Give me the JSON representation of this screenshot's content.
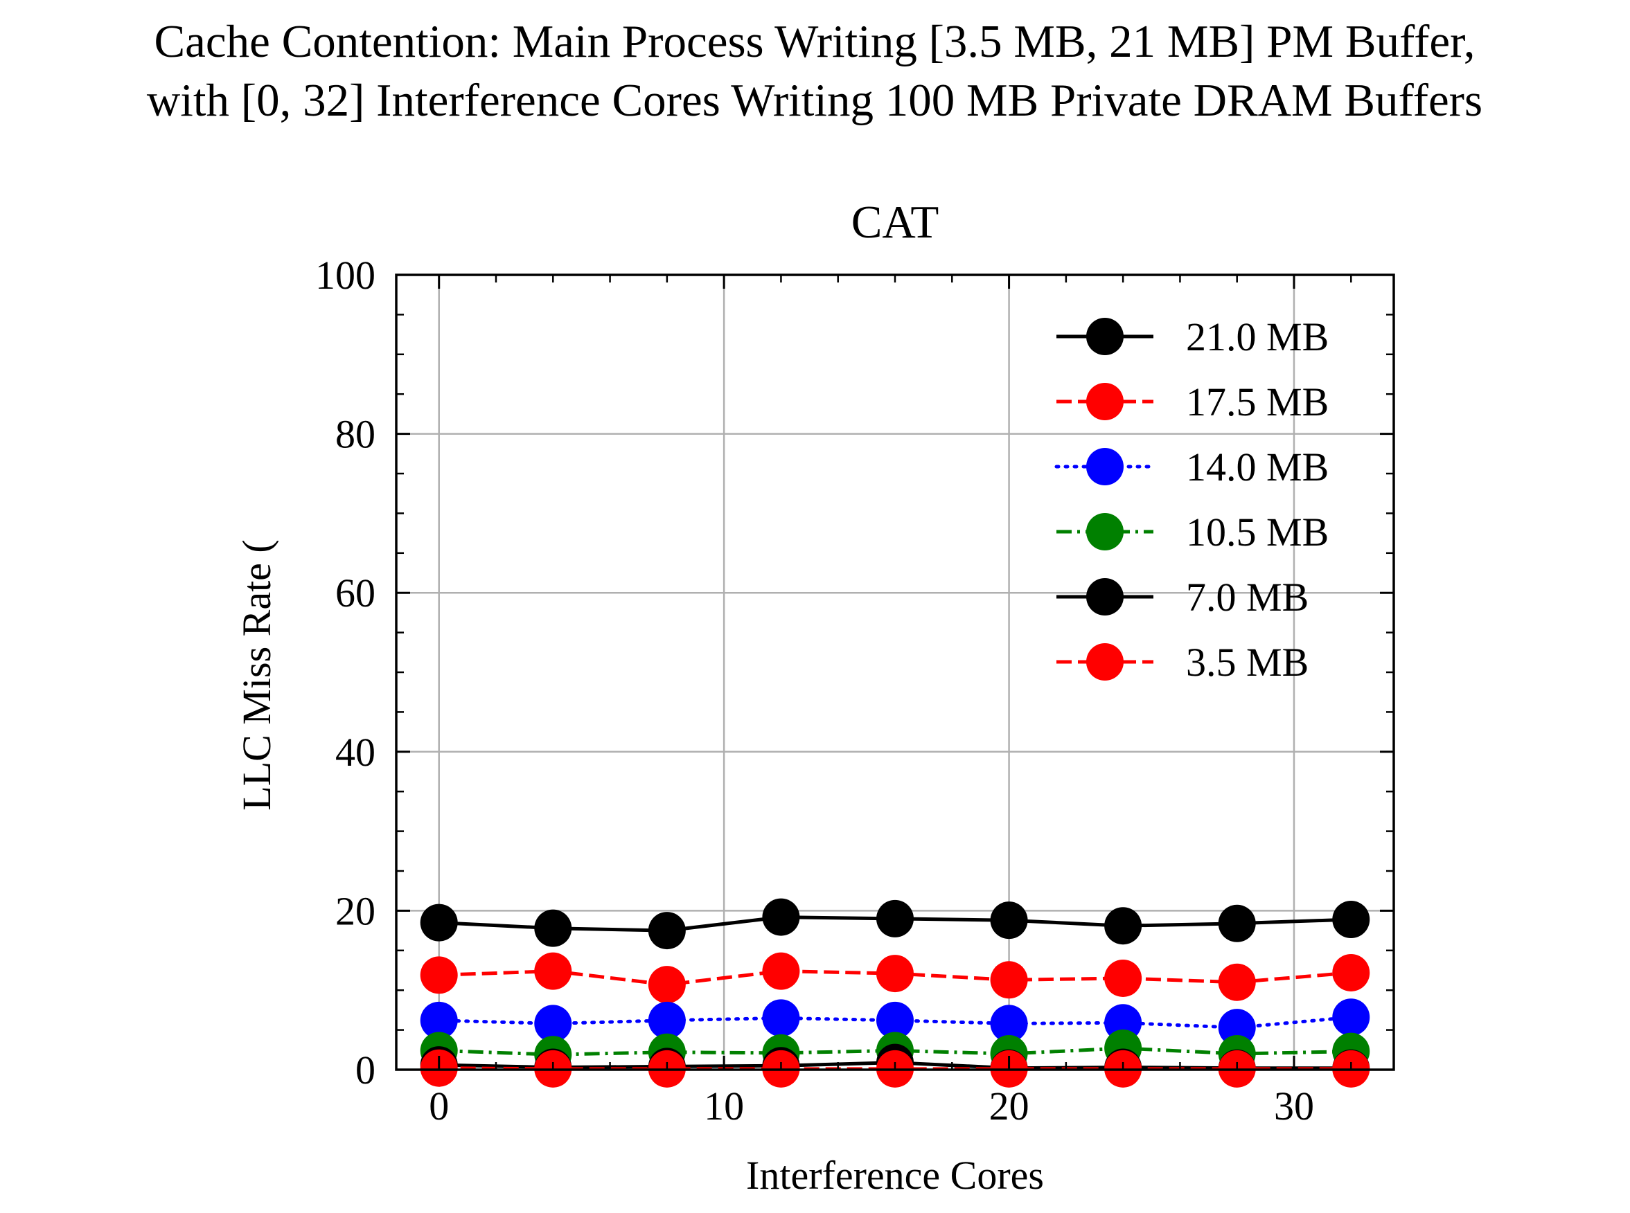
{
  "chart_data": {
    "type": "line",
    "title": "Cache Contention: Main Process Writing [3.5 MB, 21 MB] PM Buffer,",
    "title_line2": "with [0, 32] Interference Cores Writing 100 MB Private DRAM Buffers",
    "subtitle": "CAT",
    "xlabel": "Interference Cores",
    "ylabel": "LLC Miss Rate (",
    "xlim": [
      -1.5,
      33.5
    ],
    "ylim": [
      0,
      100
    ],
    "x_ticks": [
      0,
      10,
      20,
      30
    ],
    "x_tick_labels": [
      "0",
      "10",
      "20",
      "30"
    ],
    "y_ticks": [
      0,
      20,
      40,
      60,
      80,
      100
    ],
    "y_tick_labels": [
      "0",
      "20",
      "40",
      "60",
      "80",
      "100"
    ],
    "grid": true,
    "legend_position": "top-right",
    "x": [
      0,
      4,
      8,
      12,
      16,
      20,
      24,
      28,
      32
    ],
    "series": [
      {
        "name": "21.0 MB",
        "color": "#000000",
        "dash": "solid",
        "values": [
          18.5,
          17.8,
          17.5,
          19.2,
          19.0,
          18.8,
          18.1,
          18.4,
          18.9
        ]
      },
      {
        "name": "17.5 MB",
        "color": "#ff0000",
        "dash": "dashed",
        "values": [
          11.9,
          12.4,
          10.7,
          12.4,
          12.1,
          11.3,
          11.5,
          11.0,
          12.2
        ]
      },
      {
        "name": "14.0 MB",
        "color": "#0000ff",
        "dash": "dotted",
        "values": [
          6.2,
          5.8,
          6.2,
          6.5,
          6.2,
          5.8,
          5.9,
          5.3,
          6.6
        ]
      },
      {
        "name": "10.5 MB",
        "color": "#008000",
        "dash": "dashdot",
        "values": [
          2.4,
          1.9,
          2.2,
          2.1,
          2.4,
          2.0,
          2.7,
          2.0,
          2.3
        ]
      },
      {
        "name": "7.0 MB",
        "color": "#000000",
        "dash": "solid",
        "values": [
          0.6,
          0.3,
          0.4,
          0.5,
          0.9,
          0.2,
          0.3,
          0.2,
          0.2
        ]
      },
      {
        "name": "3.5 MB",
        "color": "#ff0000",
        "dash": "dashed",
        "values": [
          0.2,
          0.1,
          0.1,
          0.1,
          0.1,
          0.1,
          0.1,
          0.1,
          0.1
        ]
      }
    ]
  }
}
